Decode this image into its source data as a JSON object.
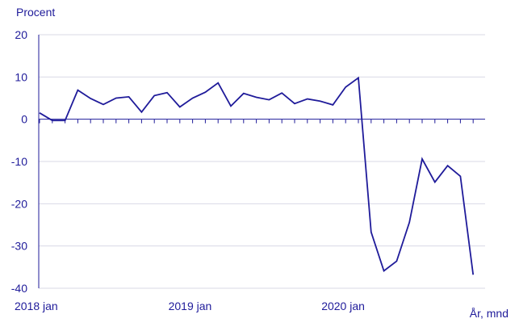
{
  "chart_data": {
    "type": "line",
    "ylabel": "Procent",
    "xlabel": "År, mnd",
    "ylim": [
      -40,
      20
    ],
    "yticks": [
      20,
      10,
      0,
      -10,
      -20,
      -30,
      -40
    ],
    "ytick_labels": [
      "20",
      "10",
      "0",
      "-10",
      "-20",
      "-30",
      "-40"
    ],
    "xtick_labels": [
      "2018 jan",
      "2019 jan",
      "2020 jan"
    ],
    "grid": "horizontal",
    "colors": {
      "line": "#1f1b9a",
      "text": "#1f1b9a",
      "grid": "#d9d9e6",
      "axis": "#1f1b9a"
    },
    "x": [
      "2018 jan",
      "2018 feb",
      "2018 mar",
      "2018 apr",
      "2018 maj",
      "2018 jun",
      "2018 jul",
      "2018 aug",
      "2018 sep",
      "2018 okt",
      "2018 nov",
      "2018 dec",
      "2019 jan",
      "2019 feb",
      "2019 mar",
      "2019 apr",
      "2019 maj",
      "2019 jun",
      "2019 jul",
      "2019 aug",
      "2019 sep",
      "2019 okt",
      "2019 nov",
      "2019 dec",
      "2020 jan",
      "2020 feb",
      "2020 mar",
      "2020 apr",
      "2020 maj",
      "2020 jun",
      "2020 jul",
      "2020 aug",
      "2020 sep",
      "2020 okt",
      "2020 nov",
      "2020 dec"
    ],
    "values": [
      1.5,
      -0.3,
      -0.3,
      6.9,
      4.9,
      3.5,
      5.0,
      5.3,
      1.7,
      5.6,
      6.3,
      2.9,
      5.0,
      6.4,
      8.6,
      3.1,
      6.1,
      5.2,
      4.6,
      6.2,
      3.7,
      4.8,
      4.3,
      3.4,
      7.6,
      9.8,
      -26.7,
      -35.9,
      -33.6,
      -24.4,
      -9.4,
      -14.9,
      -11.0,
      -13.5,
      -36.8,
      null
    ]
  }
}
